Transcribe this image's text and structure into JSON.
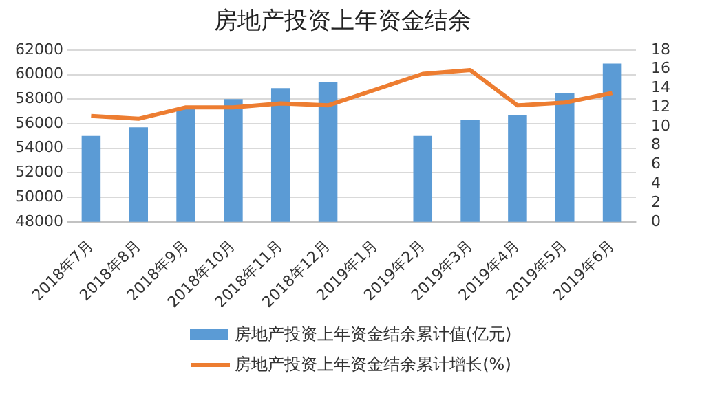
{
  "chart_data": {
    "type": "bar",
    "title": "房地产投资上年资金结余",
    "categories": [
      "2018年7月",
      "2018年8月",
      "2018年9月",
      "2018年10月",
      "2018年11月",
      "2018年12月",
      "2019年1月",
      "2019年2月",
      "2019年3月",
      "2019年4月",
      "2019年5月",
      "2019年6月"
    ],
    "series": [
      {
        "name": "房地产投资上年资金结余累计值(亿元)",
        "color": "#5b9bd5",
        "values": [
          55000,
          55700,
          57200,
          58000,
          58900,
          59400,
          null,
          55000,
          56300,
          56700,
          58500,
          60900
        ]
      },
      {
        "name": "房地产投资上年资金结余累计增长(%)",
        "type": "line",
        "axis": "y2",
        "color": "#ed7d31",
        "values": [
          11.1,
          10.8,
          12.0,
          12.0,
          12.4,
          12.2,
          null,
          15.5,
          15.9,
          12.2,
          12.5,
          13.5
        ]
      }
    ],
    "ylim": [
      48000,
      62000
    ],
    "yticks": [
      48000,
      50000,
      52000,
      54000,
      56000,
      58000,
      60000,
      62000
    ],
    "y2lim": [
      0,
      18
    ],
    "y2ticks": [
      0,
      2,
      4,
      6,
      8,
      10,
      12,
      14,
      16,
      18
    ],
    "grid": "y",
    "legend": "bottom",
    "marker": "none"
  }
}
